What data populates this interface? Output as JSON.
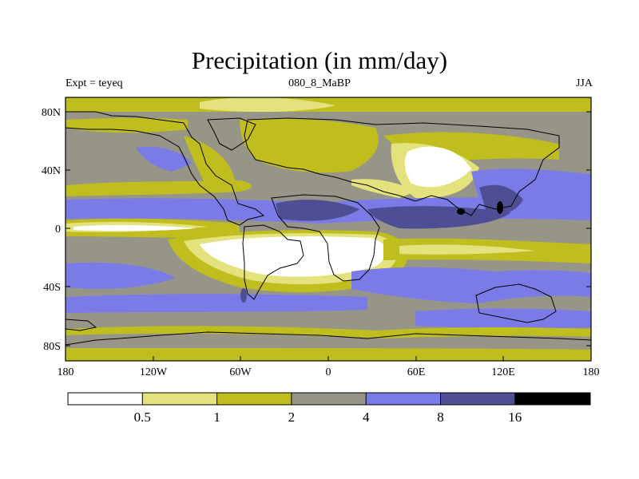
{
  "title": "Precipitation (in mm/day)",
  "experiment": "Expt = teyeq",
  "age": "080_8_MaBP",
  "season": "JJA",
  "colors": {
    "c0": "#ffffff",
    "c1": "#e4e27d",
    "c2": "#c0bd1e",
    "c3": "#979588",
    "c4": "#7b7be8",
    "c5": "#4e4e94",
    "c6": "#000000"
  },
  "lat_ticks": [
    "80N",
    "40N",
    "0",
    "40S",
    "80S"
  ],
  "lon_ticks": [
    "180",
    "120W",
    "60W",
    "0",
    "60E",
    "120E",
    "180"
  ],
  "colorbar": {
    "levels": [
      "0.5",
      "1",
      "2",
      "4",
      "8",
      "16"
    ]
  }
}
